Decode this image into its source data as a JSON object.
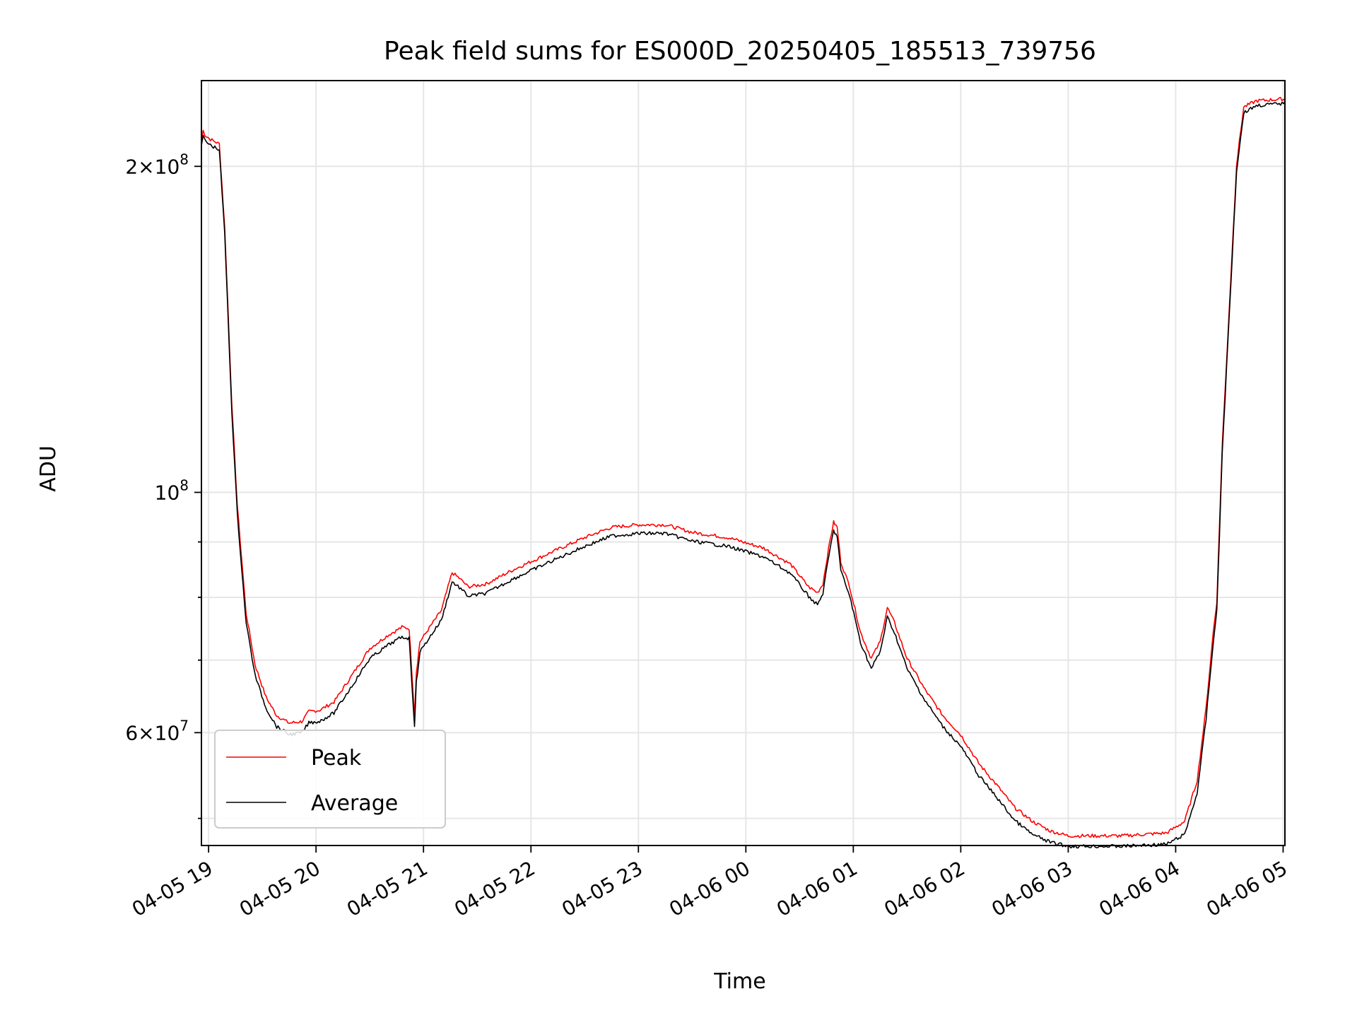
{
  "chart_data": {
    "type": "line",
    "title": "Peak field sums for ES000D_20250405_185513_739756",
    "xlabel": "Time",
    "ylabel": "ADU",
    "yscale": "log",
    "xlim": [
      "2025-04-05 18:56",
      "2025-04-06 05:01"
    ],
    "ylim": [
      47200000,
      240000000
    ],
    "grid": true,
    "legend_position": "lower-left",
    "x_ticks": [
      {
        "value": "2025-04-05 19:00",
        "label": "04-05 19"
      },
      {
        "value": "2025-04-05 20:00",
        "label": "04-05 20"
      },
      {
        "value": "2025-04-05 21:00",
        "label": "04-05 21"
      },
      {
        "value": "2025-04-05 22:00",
        "label": "04-05 22"
      },
      {
        "value": "2025-04-05 23:00",
        "label": "04-05 23"
      },
      {
        "value": "2025-04-06 00:00",
        "label": "04-06 00"
      },
      {
        "value": "2025-04-06 01:00",
        "label": "04-06 01"
      },
      {
        "value": "2025-04-06 02:00",
        "label": "04-06 02"
      },
      {
        "value": "2025-04-06 03:00",
        "label": "04-06 03"
      },
      {
        "value": "2025-04-06 04:00",
        "label": "04-06 04"
      },
      {
        "value": "2025-04-06 05:00",
        "label": "04-06 05"
      }
    ],
    "y_major_ticks": [
      {
        "value": 100000000,
        "base": "10",
        "exp": "8",
        "mantissa": ""
      },
      {
        "value": 200000000,
        "base": "10",
        "exp": "8",
        "mantissa": "2"
      },
      {
        "value": 60000000,
        "base": "10",
        "exp": "7",
        "mantissa": "6"
      }
    ],
    "y_minor_ticks": [
      50000000,
      70000000,
      80000000,
      90000000
    ],
    "series": [
      {
        "name": "Peak",
        "color": "#ff0000",
        "points": [
          [
            "2025-04-05 18:56",
            211000000
          ],
          [
            "2025-04-05 18:57",
            215000000
          ],
          [
            "2025-04-05 18:58",
            213000000
          ],
          [
            "2025-04-05 19:01",
            211000000
          ],
          [
            "2025-04-05 19:06",
            209000000
          ],
          [
            "2025-04-05 19:09",
            175000000
          ],
          [
            "2025-04-05 19:13",
            120000000
          ],
          [
            "2025-04-05 19:16",
            97000000
          ],
          [
            "2025-04-05 19:21",
            77000000
          ],
          [
            "2025-04-05 19:26",
            69000000
          ],
          [
            "2025-04-05 19:32",
            64500000
          ],
          [
            "2025-04-05 19:38",
            62000000
          ],
          [
            "2025-04-05 19:45",
            61000000
          ],
          [
            "2025-04-05 19:52",
            61200000
          ],
          [
            "2025-04-05 19:56",
            62500000
          ],
          [
            "2025-04-05 20:02",
            62700000
          ],
          [
            "2025-04-05 20:10",
            63800000
          ],
          [
            "2025-04-05 20:20",
            67500000
          ],
          [
            "2025-04-05 20:30",
            71500000
          ],
          [
            "2025-04-05 20:40",
            73500000
          ],
          [
            "2025-04-05 20:48",
            74800000
          ],
          [
            "2025-04-05 20:52",
            74600000
          ],
          [
            "2025-04-05 20:54",
            66000000
          ],
          [
            "2025-04-05 20:55",
            62000000
          ],
          [
            "2025-04-05 20:56",
            68000000
          ],
          [
            "2025-04-05 20:58",
            72500000
          ],
          [
            "2025-04-05 21:04",
            75000000
          ],
          [
            "2025-04-05 21:10",
            77500000
          ],
          [
            "2025-04-05 21:16",
            84000000
          ],
          [
            "2025-04-05 21:20",
            83000000
          ],
          [
            "2025-04-05 21:25",
            81500000
          ],
          [
            "2025-04-05 21:35",
            82000000
          ],
          [
            "2025-04-05 21:50",
            84500000
          ],
          [
            "2025-04-05 22:10",
            87500000
          ],
          [
            "2025-04-05 22:30",
            90500000
          ],
          [
            "2025-04-05 22:45",
            92500000
          ],
          [
            "2025-04-05 23:00",
            93000000
          ],
          [
            "2025-04-05 23:15",
            93000000
          ],
          [
            "2025-04-05 23:30",
            91500000
          ],
          [
            "2025-04-05 23:50",
            90500000
          ],
          [
            "2025-04-06 00:10",
            88500000
          ],
          [
            "2025-04-06 00:25",
            85500000
          ],
          [
            "2025-04-06 00:35",
            81500000
          ],
          [
            "2025-04-06 00:40",
            80500000
          ],
          [
            "2025-04-06 00:43",
            82000000
          ],
          [
            "2025-04-06 00:47",
            90000000
          ],
          [
            "2025-04-06 00:49",
            93500000
          ],
          [
            "2025-04-06 00:51",
            92500000
          ],
          [
            "2025-04-06 00:53",
            86000000
          ],
          [
            "2025-04-06 00:58",
            81500000
          ],
          [
            "2025-04-06 01:04",
            74000000
          ],
          [
            "2025-04-06 01:10",
            70000000
          ],
          [
            "2025-04-06 01:15",
            72500000
          ],
          [
            "2025-04-06 01:19",
            78000000
          ],
          [
            "2025-04-06 01:23",
            75500000
          ],
          [
            "2025-04-06 01:30",
            70000000
          ],
          [
            "2025-04-06 01:40",
            65500000
          ],
          [
            "2025-04-06 01:50",
            62000000
          ],
          [
            "2025-04-06 02:00",
            59500000
          ],
          [
            "2025-04-06 02:10",
            56000000
          ],
          [
            "2025-04-06 02:20",
            53500000
          ],
          [
            "2025-04-06 02:30",
            51000000
          ],
          [
            "2025-04-06 02:40",
            49500000
          ],
          [
            "2025-04-06 02:50",
            48500000
          ],
          [
            "2025-04-06 03:00",
            48000000
          ],
          [
            "2025-04-06 03:30",
            48000000
          ],
          [
            "2025-04-06 03:55",
            48300000
          ],
          [
            "2025-04-06 04:05",
            49500000
          ],
          [
            "2025-04-06 04:12",
            54000000
          ],
          [
            "2025-04-06 04:17",
            63000000
          ],
          [
            "2025-04-06 04:21",
            74000000
          ],
          [
            "2025-04-06 04:23",
            79000000
          ],
          [
            "2025-04-06 04:26",
            110000000
          ],
          [
            "2025-04-06 04:30",
            148000000
          ],
          [
            "2025-04-06 04:34",
            200000000
          ],
          [
            "2025-04-06 04:38",
            226000000
          ],
          [
            "2025-04-06 04:45",
            229000000
          ],
          [
            "2025-04-06 05:01",
            230000000
          ]
        ]
      },
      {
        "name": "Average",
        "color": "#000000",
        "points": [
          [
            "2025-04-05 18:56",
            210000000
          ],
          [
            "2025-04-05 18:57",
            214000000
          ],
          [
            "2025-04-05 18:58",
            212000000
          ],
          [
            "2025-04-05 19:01",
            210000000
          ],
          [
            "2025-04-05 19:06",
            208000000
          ],
          [
            "2025-04-05 19:09",
            174000000
          ],
          [
            "2025-04-05 19:13",
            119000000
          ],
          [
            "2025-04-05 19:16",
            96000000
          ],
          [
            "2025-04-05 19:21",
            76000000
          ],
          [
            "2025-04-05 19:26",
            68000000
          ],
          [
            "2025-04-05 19:32",
            63500000
          ],
          [
            "2025-04-05 19:38",
            61000000
          ],
          [
            "2025-04-05 19:45",
            60000000
          ],
          [
            "2025-04-05 19:52",
            60200000
          ],
          [
            "2025-04-05 19:56",
            61500000
          ],
          [
            "2025-04-05 20:02",
            61700000
          ],
          [
            "2025-04-05 20:10",
            62800000
          ],
          [
            "2025-04-05 20:20",
            66500000
          ],
          [
            "2025-04-05 20:30",
            70500000
          ],
          [
            "2025-04-05 20:40",
            72500000
          ],
          [
            "2025-04-05 20:48",
            73800000
          ],
          [
            "2025-04-05 20:52",
            73600000
          ],
          [
            "2025-04-05 20:54",
            65000000
          ],
          [
            "2025-04-05 20:55",
            61000000
          ],
          [
            "2025-04-05 20:56",
            67000000
          ],
          [
            "2025-04-05 20:58",
            71500000
          ],
          [
            "2025-04-05 21:04",
            74000000
          ],
          [
            "2025-04-05 21:10",
            76500000
          ],
          [
            "2025-04-05 21:16",
            83000000
          ],
          [
            "2025-04-05 21:20",
            82000000
          ],
          [
            "2025-04-05 21:25",
            80500000
          ],
          [
            "2025-04-05 21:35",
            81000000
          ],
          [
            "2025-04-05 21:50",
            83500000
          ],
          [
            "2025-04-05 22:10",
            86500000
          ],
          [
            "2025-04-05 22:30",
            89500000
          ],
          [
            "2025-04-05 22:45",
            91500000
          ],
          [
            "2025-04-05 23:00",
            92000000
          ],
          [
            "2025-04-05 23:15",
            92000000
          ],
          [
            "2025-04-05 23:30",
            90500000
          ],
          [
            "2025-04-05 23:50",
            89500000
          ],
          [
            "2025-04-06 00:10",
            87500000
          ],
          [
            "2025-04-06 00:25",
            84500000
          ],
          [
            "2025-04-06 00:35",
            80500000
          ],
          [
            "2025-04-06 00:40",
            79000000
          ],
          [
            "2025-04-06 00:43",
            81000000
          ],
          [
            "2025-04-06 00:47",
            89000000
          ],
          [
            "2025-04-06 00:49",
            92500000
          ],
          [
            "2025-04-06 00:51",
            91500000
          ],
          [
            "2025-04-06 00:53",
            85000000
          ],
          [
            "2025-04-06 00:58",
            80500000
          ],
          [
            "2025-04-06 01:04",
            73000000
          ],
          [
            "2025-04-06 01:10",
            69000000
          ],
          [
            "2025-04-06 01:15",
            71500000
          ],
          [
            "2025-04-06 01:19",
            77000000
          ],
          [
            "2025-04-06 01:23",
            74500000
          ],
          [
            "2025-04-06 01:30",
            69000000
          ],
          [
            "2025-04-06 01:40",
            64500000
          ],
          [
            "2025-04-06 01:50",
            61000000
          ],
          [
            "2025-04-06 02:00",
            58500000
          ],
          [
            "2025-04-06 02:10",
            55000000
          ],
          [
            "2025-04-06 02:20",
            52500000
          ],
          [
            "2025-04-06 02:30",
            50000000
          ],
          [
            "2025-04-06 02:40",
            48500000
          ],
          [
            "2025-04-06 02:50",
            47700000
          ],
          [
            "2025-04-06 03:00",
            47300000
          ],
          [
            "2025-04-06 03:30",
            47300000
          ],
          [
            "2025-04-06 03:55",
            47500000
          ],
          [
            "2025-04-06 04:05",
            48500000
          ],
          [
            "2025-04-06 04:12",
            53000000
          ],
          [
            "2025-04-06 04:17",
            62000000
          ],
          [
            "2025-04-06 04:21",
            73000000
          ],
          [
            "2025-04-06 04:23",
            78000000
          ],
          [
            "2025-04-06 04:26",
            109000000
          ],
          [
            "2025-04-06 04:30",
            147000000
          ],
          [
            "2025-04-06 04:34",
            199000000
          ],
          [
            "2025-04-06 04:38",
            225000000
          ],
          [
            "2025-04-06 04:45",
            228500000
          ],
          [
            "2025-04-06 05:01",
            229500000
          ]
        ]
      }
    ]
  }
}
